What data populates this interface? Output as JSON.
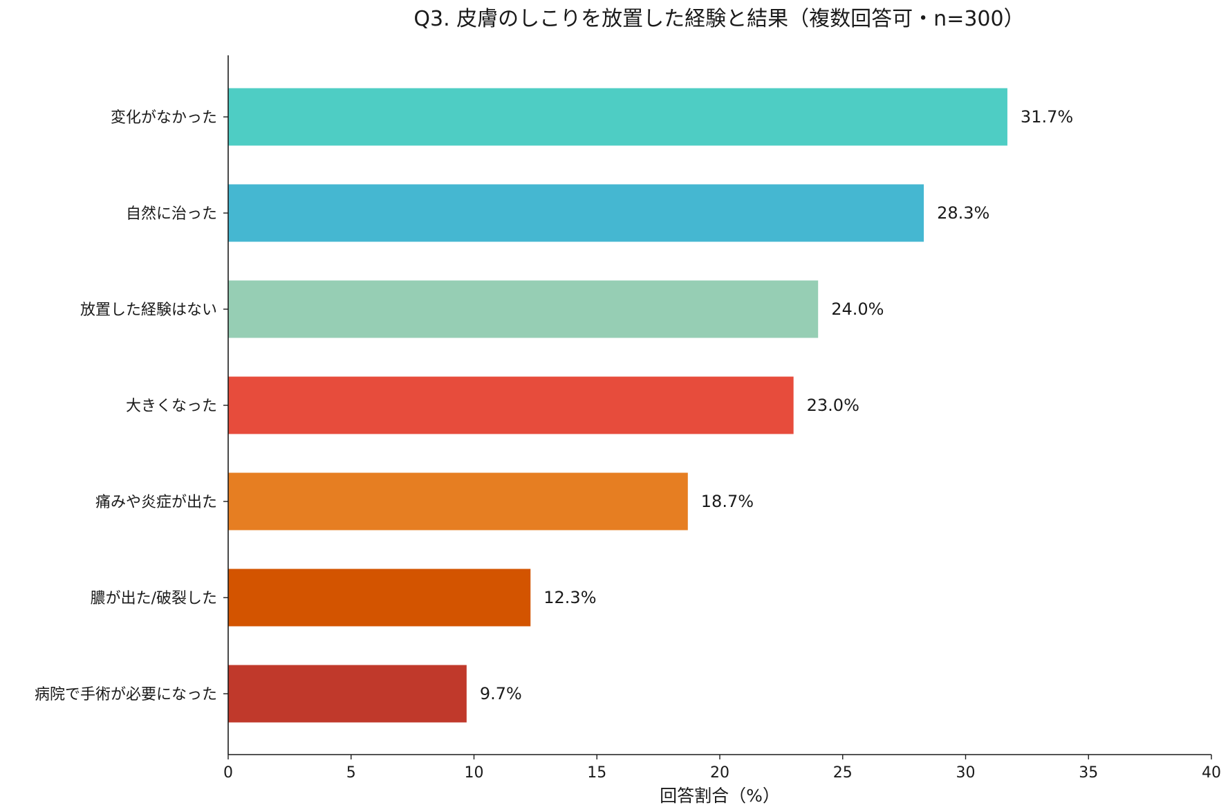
{
  "chart_data": {
    "type": "bar",
    "orientation": "horizontal",
    "title": "Q3. 皮膚のしこりを放置した経験と結果（複数回答可・n=300）",
    "xlabel": "回答割合（%）",
    "ylabel": "",
    "xlim": [
      0,
      40
    ],
    "xticks": [
      0,
      5,
      10,
      15,
      20,
      25,
      30,
      35,
      40
    ],
    "grid": false,
    "legend": "none",
    "value_suffix": "%",
    "categories": [
      "変化がなかった",
      "自然に治った",
      "放置した経験はない",
      "大きくなった",
      "痛みや炎症が出た",
      "膿が出た/破裂した",
      "病院で手術が必要になった"
    ],
    "values": [
      31.7,
      28.3,
      24.0,
      23.0,
      18.7,
      12.3,
      9.7
    ],
    "colors": [
      "#4ecdc4",
      "#45b7d1",
      "#96ceb4",
      "#e74c3c",
      "#e67e22",
      "#d35400",
      "#c0392b"
    ]
  }
}
